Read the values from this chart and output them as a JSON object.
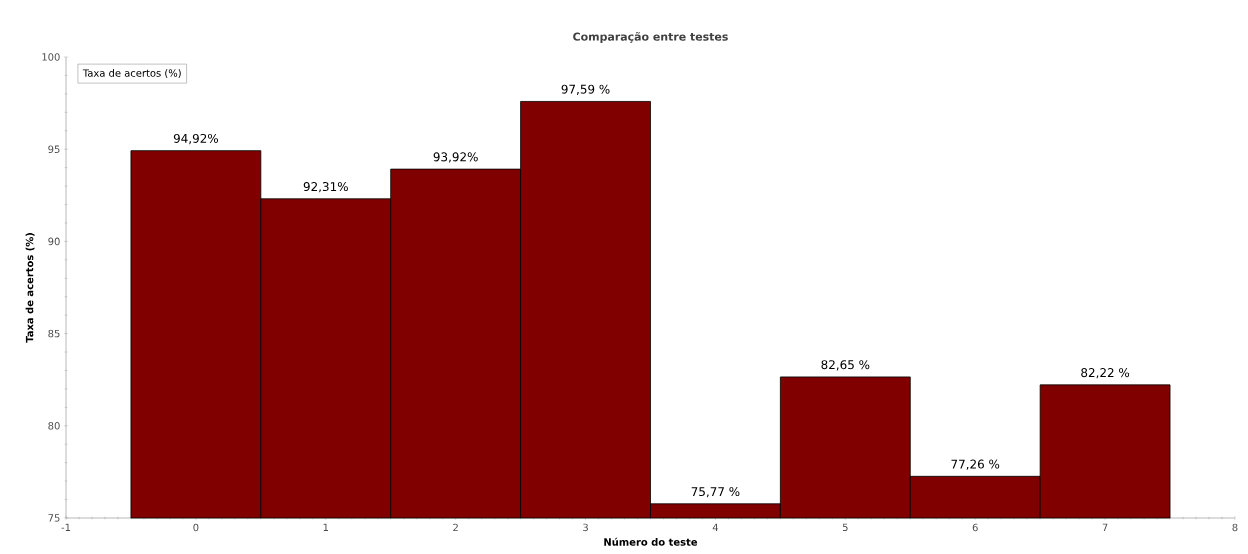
{
  "chart_data": {
    "type": "bar",
    "title": "Comparação entre testes",
    "xlabel": "Número do teste",
    "ylabel": "Taxa de acertos (%)",
    "x": [
      0,
      1,
      2,
      3,
      4,
      5,
      6,
      7
    ],
    "series": [
      {
        "name": "Taxa de acertos (%)",
        "color": "#800000",
        "values": [
          94.92,
          92.31,
          93.92,
          97.59,
          75.77,
          82.65,
          77.26,
          82.22
        ],
        "value_labels": [
          "94,92%",
          "92,31%",
          "93,92%",
          "97,59 %",
          "75,77 %",
          "82,65 %",
          "77,26 %",
          "82,22 %"
        ]
      }
    ],
    "xlim": [
      -1,
      8
    ],
    "xticks": [
      -1,
      0,
      1,
      2,
      3,
      4,
      5,
      6,
      7,
      8
    ],
    "ylim": [
      75,
      100
    ],
    "yticks": [
      75,
      80,
      85,
      90,
      95,
      100
    ],
    "legend": "top left",
    "grid": false
  }
}
